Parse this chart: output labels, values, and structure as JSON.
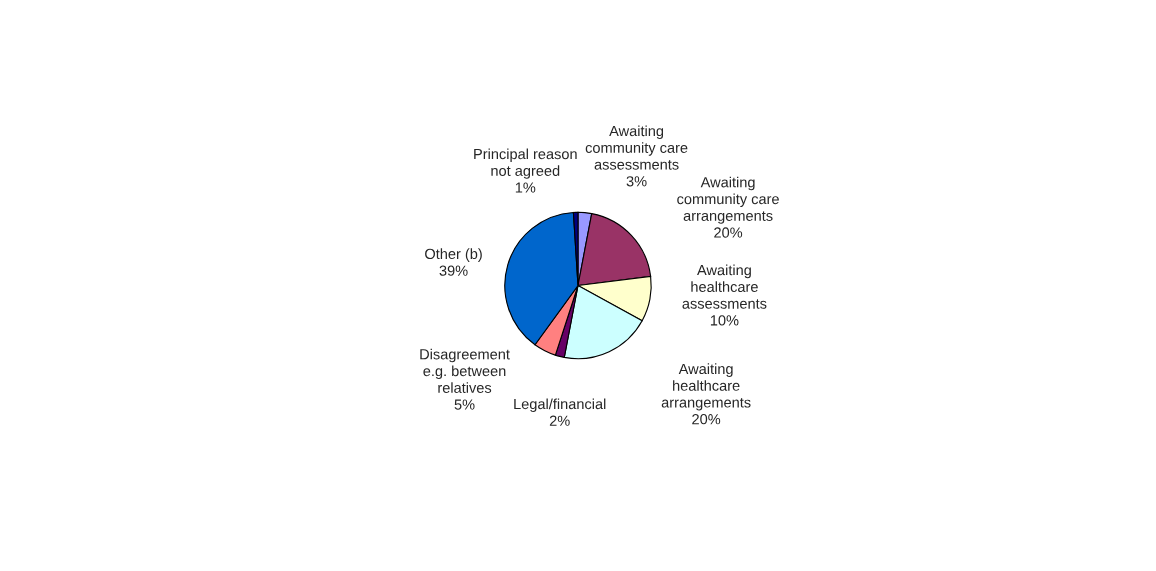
{
  "chart_data": {
    "type": "pie",
    "categories": [
      "Awaiting community care assessments",
      "Awaiting community care arrangements",
      "Awaiting healthcare assessments",
      "Awaiting healthcare arrangements",
      "Legal/financial",
      "Disagreement e.g. between relatives",
      "Other (b)",
      "Principal reason not agreed"
    ],
    "values": [
      3,
      20,
      10,
      20,
      2,
      5,
      39,
      1
    ],
    "colors": [
      "#9999ff",
      "#993366",
      "#ffffcc",
      "#ccffff",
      "#660066",
      "#ff8080",
      "#0066cc",
      "#000080"
    ],
    "value_labels": [
      "3%",
      "20%",
      "10%",
      "20%",
      "2%",
      "5%",
      "39%",
      "1%"
    ]
  }
}
